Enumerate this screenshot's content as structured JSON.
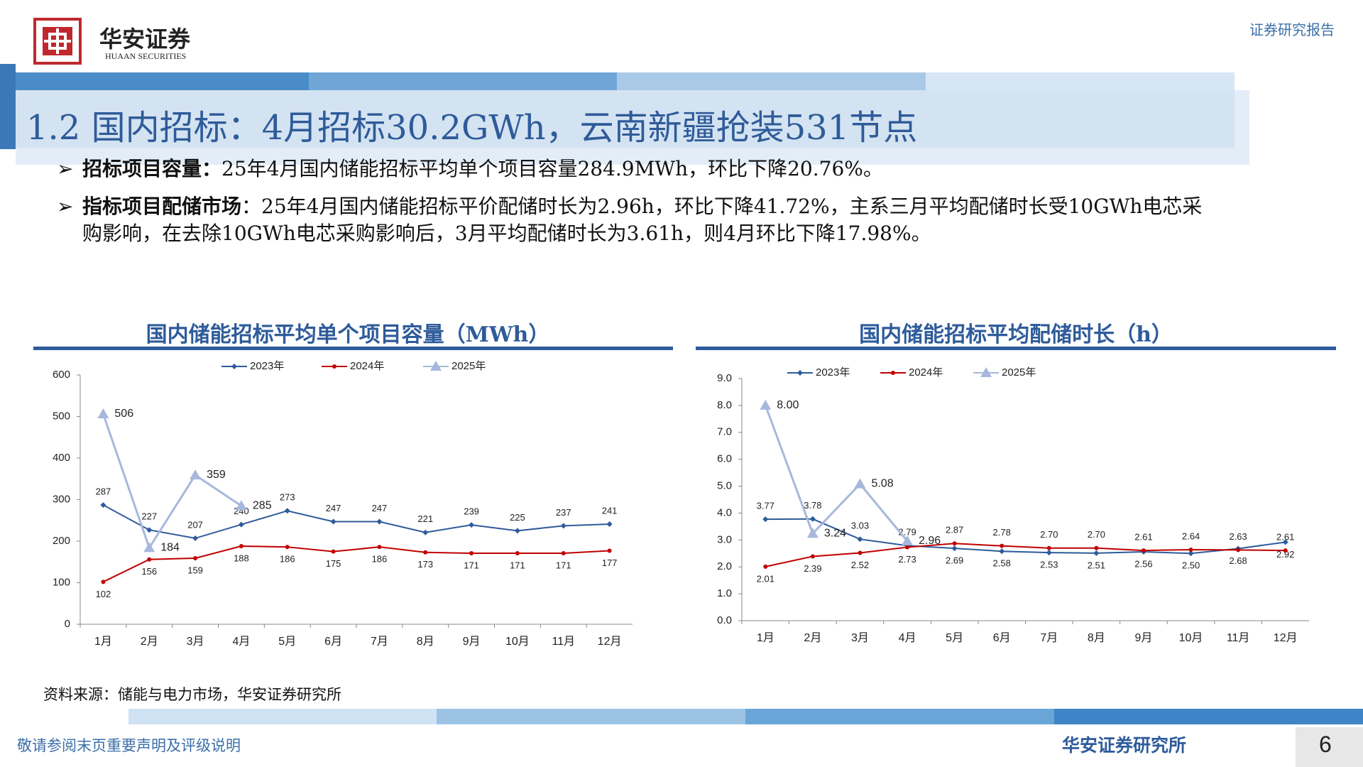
{
  "header": {
    "logo_cn": "华安证券",
    "logo_en": "HUAAN SECURITIES",
    "report_type": "证券研究报告",
    "title": "1.2 国内招标：4月招标30.2GWh，云南新疆抢装531节点"
  },
  "bullets": [
    {
      "label": "招标项目容量：",
      "text": "25年4月国内储能招标平均单个项目容量284.9MWh，环比下降20.76%。"
    },
    {
      "label": "指标项目配储市场",
      "text": "：25年4月国内储能招标平价配储时长为2.96h，环比下降41.72%，主系三月平均配储时长受10GWh电芯采购影响，在去除10GWh电芯采购影响后，3月平均配储时长为3.61h，则4月环比下降17.98%。"
    }
  ],
  "chart_data": [
    {
      "type": "line",
      "title": "国内储能招标平均单个项目容量（MWh）",
      "categories": [
        "1月",
        "2月",
        "3月",
        "4月",
        "5月",
        "6月",
        "7月",
        "8月",
        "9月",
        "10月",
        "11月",
        "12月"
      ],
      "series": [
        {
          "name": "2023年",
          "color": "#2e5b9a",
          "values": [
            287,
            227,
            207,
            240,
            273,
            247,
            247,
            221,
            239,
            225,
            237,
            241
          ]
        },
        {
          "name": "2024年",
          "color": "#c00000",
          "values": [
            102,
            156,
            159,
            188,
            186,
            175,
            186,
            173,
            171,
            171,
            171,
            177
          ]
        },
        {
          "name": "2025年",
          "color": "#a6b8dc",
          "values": [
            506,
            184,
            359,
            285,
            null,
            null,
            null,
            null,
            null,
            null,
            null,
            null
          ]
        }
      ],
      "ylim": [
        0,
        600
      ],
      "yticks": [
        0,
        100,
        200,
        300,
        400,
        500,
        600
      ],
      "grid": false,
      "legend": "top"
    },
    {
      "type": "line",
      "title": "国内储能招标平均配储时长（h）",
      "categories": [
        "1月",
        "2月",
        "3月",
        "4月",
        "5月",
        "6月",
        "7月",
        "8月",
        "9月",
        "10月",
        "11月",
        "12月"
      ],
      "series": [
        {
          "name": "2023年",
          "color": "#2e5b9a",
          "values": [
            3.77,
            3.78,
            3.03,
            2.79,
            2.69,
            2.58,
            2.53,
            2.51,
            2.56,
            2.5,
            2.68,
            2.92
          ],
          "value_labels": [
            "3.77",
            "3.78",
            "3.03",
            "2.79",
            "2.69",
            "2.58",
            "2.53",
            "2.51",
            "2.56",
            "2.50",
            "2.68",
            "2.92"
          ]
        },
        {
          "name": "2024年",
          "color": "#c00000",
          "values": [
            2.01,
            2.39,
            2.52,
            2.73,
            2.87,
            2.78,
            2.7,
            2.7,
            2.61,
            2.64,
            2.63,
            2.61
          ],
          "value_labels": [
            "2.01",
            "2.39",
            "2.52",
            "2.73",
            "2.87",
            "2.78",
            "2.70",
            "2.70",
            "2.61",
            "2.64",
            "2.63",
            "2.61"
          ]
        },
        {
          "name": "2025年",
          "color": "#a6b8dc",
          "values": [
            8,
            3.24,
            5.08,
            2.96,
            null,
            null,
            null,
            null,
            null,
            null,
            null,
            null
          ],
          "value_labels": [
            "8.00",
            "3.24",
            "5.08",
            "2.96",
            null,
            null,
            null,
            null,
            null,
            null,
            null,
            null
          ]
        }
      ],
      "ylim": [
        0,
        9
      ],
      "yticks": [
        {
          "value": 0,
          "label": "0.0"
        },
        {
          "value": 1,
          "label": "1.0"
        },
        {
          "value": 2,
          "label": "2.0"
        },
        {
          "value": 3,
          "label": "3.0"
        },
        {
          "value": 4,
          "label": "4.0"
        },
        {
          "value": 5,
          "label": "5.0"
        },
        {
          "value": 6,
          "label": "6.0"
        },
        {
          "value": 7,
          "label": "7.0"
        },
        {
          "value": 8,
          "label": "8.0"
        },
        {
          "value": 9,
          "label": "9.0"
        }
      ],
      "grid": false,
      "legend": "top"
    }
  ],
  "source": "资料来源：储能与电力市场，华安证券研究所",
  "footer": {
    "disclaimer": "敬请参阅末页重要声明及评级说明",
    "institute": "华安证券研究所",
    "page": 6
  }
}
